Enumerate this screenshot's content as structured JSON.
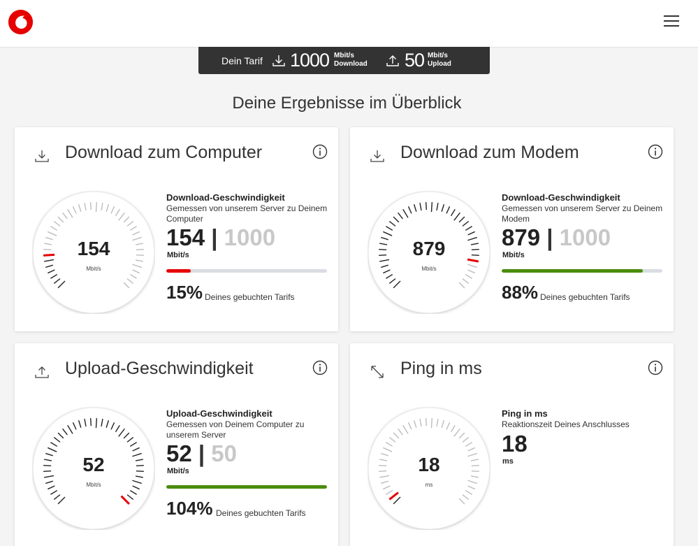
{
  "brand": {
    "color": "#e60000",
    "logo_icon": "vodafone-logo-icon"
  },
  "tarif": {
    "label": "Dein Tarif",
    "download": {
      "value": "1000",
      "unit": "Mbit/s",
      "label": "Download"
    },
    "upload": {
      "value": "50",
      "unit": "Mbit/s",
      "label": "Upload"
    }
  },
  "heading": "Deine Ergebnisse im Überblick",
  "cards": [
    {
      "title": "Download zum Computer",
      "icon": "download-icon",
      "value": "154",
      "unit": "Mbit/s",
      "detail_title": "Download-Geschwindigkeit",
      "detail_sub": "Gemessen von unserem Server zu Deinem Computer",
      "max": "1000",
      "progress": 0.15,
      "progress_color": "#e60000",
      "percent": "15%",
      "percent_label": "Deines gebuchten Tarifs",
      "gauge_fraction": 0.15
    },
    {
      "title": "Download zum Modem",
      "icon": "download-icon",
      "value": "879",
      "unit": "Mbit/s",
      "detail_title": "Download-Geschwindigkeit",
      "detail_sub": "Gemessen von unserem Server zu Deinem Modem",
      "max": "1000",
      "progress": 0.88,
      "progress_color": "#4a8c0c",
      "percent": "88%",
      "percent_label": "Deines gebuchten Tarifs",
      "gauge_fraction": 0.88
    },
    {
      "title": "Upload-Geschwindigkeit",
      "icon": "upload-icon",
      "value": "52",
      "unit": "Mbit/s",
      "detail_title": "Upload-Geschwindigkeit",
      "detail_sub": "Gemessen von Deinem Computer zu unserem Server",
      "max": "50",
      "progress": 1.0,
      "progress_color": "#4a8c0c",
      "percent": "104%",
      "percent_label": "Deines gebuchten Tarifs",
      "gauge_fraction": 1.0
    },
    {
      "title": "Ping in ms",
      "icon": "ping-icon",
      "value": "18",
      "unit": "ms",
      "detail_title": "Ping in ms",
      "detail_sub": "Reaktionszeit Deines Anschlusses",
      "gauge_fraction": 0.02
    }
  ]
}
